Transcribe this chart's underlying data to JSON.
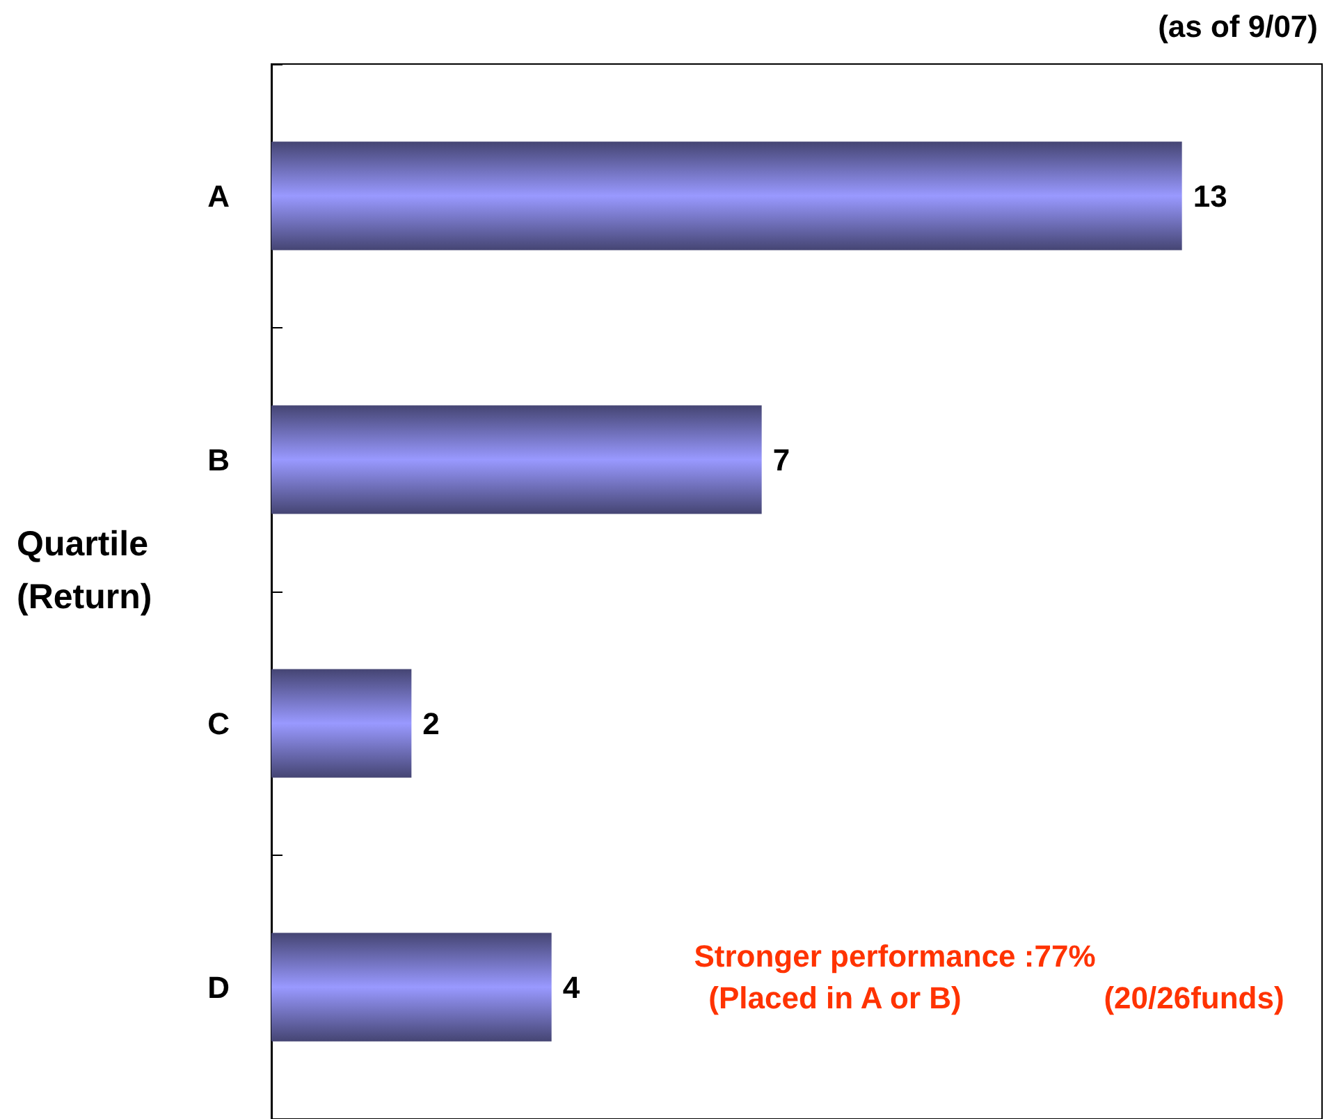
{
  "chart_data": {
    "type": "bar",
    "orientation": "horizontal",
    "ylabel": "Quartile\n(Return)",
    "categories": [
      "A",
      "B",
      "C",
      "D"
    ],
    "values": [
      13,
      7,
      2,
      4
    ],
    "color": "#9999ff",
    "data_labels": true,
    "xlim": [
      0,
      15
    ],
    "tick_labels": "y",
    "annotations": [
      "(as of 9/07)",
      "Stronger performance :77%",
      "(Placed in A or B)",
      "(20/26funds)"
    ]
  }
}
